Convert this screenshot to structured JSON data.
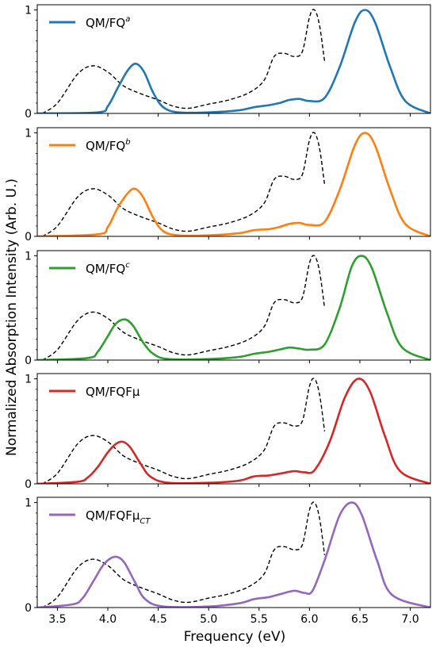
{
  "figure": {
    "ylabel": "Normalized Absorption Intensity (Arb. U.)",
    "xlabel": "Frequency (eV)"
  },
  "chart_data": [
    {
      "type": "line",
      "legend": {
        "label": "QM/FQ",
        "sup": "a",
        "sub": "",
        "placement": "top-left"
      },
      "xlim": [
        3.3,
        7.2
      ],
      "ylim": [
        0,
        1.05
      ],
      "xticks": [
        "3.5",
        "4.0",
        "4.5",
        "5.0",
        "5.5",
        "6.0",
        "6.5",
        "7.0"
      ],
      "yticks": [
        "0",
        "1"
      ],
      "series": [
        {
          "color": "#1f77b4",
          "style": "solid",
          "x": [
            3.3,
            3.9,
            4.0,
            4.1,
            4.2,
            4.28,
            4.36,
            4.45,
            4.55,
            4.7,
            5.0,
            5.3,
            5.45,
            5.6,
            5.7,
            5.8,
            5.9,
            6.0,
            6.15,
            6.3,
            6.45,
            6.55,
            6.65,
            6.8,
            6.95,
            7.2
          ],
          "y": [
            0,
            0.01,
            0.07,
            0.25,
            0.42,
            0.48,
            0.4,
            0.2,
            0.06,
            0.01,
            0.01,
            0.03,
            0.06,
            0.08,
            0.1,
            0.13,
            0.14,
            0.12,
            0.15,
            0.45,
            0.88,
            1.0,
            0.88,
            0.45,
            0.12,
            0.0
          ]
        },
        {
          "color": "#000000",
          "style": "dashed",
          "x": [
            3.35,
            3.5,
            3.7,
            3.85,
            4.0,
            4.15,
            4.3,
            4.5,
            4.65,
            4.8,
            5.0,
            5.2,
            5.4,
            5.55,
            5.65,
            5.75,
            5.85,
            5.93,
            6.0,
            6.05,
            6.1,
            6.15
          ],
          "y": [
            0.0,
            0.1,
            0.38,
            0.46,
            0.4,
            0.27,
            0.2,
            0.13,
            0.07,
            0.05,
            0.09,
            0.13,
            0.2,
            0.32,
            0.55,
            0.58,
            0.55,
            0.6,
            0.93,
            1.0,
            0.85,
            0.5
          ]
        }
      ]
    },
    {
      "type": "line",
      "legend": {
        "label": "QM/FQ",
        "sup": "b",
        "sub": "",
        "placement": "top-left"
      },
      "xlim": [
        3.3,
        7.2
      ],
      "ylim": [
        0,
        1.05
      ],
      "xticks": [
        "3.5",
        "4.0",
        "4.5",
        "5.0",
        "5.5",
        "6.0",
        "6.5",
        "7.0"
      ],
      "yticks": [
        "0",
        "1"
      ],
      "series": [
        {
          "color": "#ff7f0e",
          "style": "solid",
          "x": [
            3.3,
            3.9,
            4.0,
            4.1,
            4.2,
            4.27,
            4.35,
            4.45,
            4.55,
            4.7,
            5.0,
            5.3,
            5.45,
            5.6,
            5.7,
            5.8,
            5.9,
            6.0,
            6.15,
            6.3,
            6.45,
            6.55,
            6.65,
            6.8,
            6.95,
            7.2
          ],
          "y": [
            0,
            0.02,
            0.09,
            0.28,
            0.42,
            0.46,
            0.38,
            0.18,
            0.05,
            0.01,
            0.01,
            0.03,
            0.06,
            0.07,
            0.09,
            0.12,
            0.13,
            0.11,
            0.14,
            0.45,
            0.88,
            1.0,
            0.88,
            0.45,
            0.12,
            0.0
          ]
        },
        {
          "color": "#000000",
          "style": "dashed",
          "x": [
            3.35,
            3.5,
            3.7,
            3.85,
            4.0,
            4.15,
            4.3,
            4.5,
            4.65,
            4.8,
            5.0,
            5.2,
            5.4,
            5.55,
            5.65,
            5.75,
            5.85,
            5.93,
            6.0,
            6.05,
            6.1,
            6.15
          ],
          "y": [
            0.0,
            0.1,
            0.38,
            0.46,
            0.4,
            0.27,
            0.2,
            0.13,
            0.07,
            0.05,
            0.09,
            0.13,
            0.2,
            0.32,
            0.55,
            0.58,
            0.55,
            0.6,
            0.93,
            1.0,
            0.85,
            0.5
          ]
        }
      ]
    },
    {
      "type": "line",
      "legend": {
        "label": "QM/FQ",
        "sup": "c",
        "sub": "",
        "placement": "top-left"
      },
      "xlim": [
        3.3,
        7.2
      ],
      "ylim": [
        0,
        1.05
      ],
      "xticks": [
        "3.5",
        "4.0",
        "4.5",
        "5.0",
        "5.5",
        "6.0",
        "6.5",
        "7.0"
      ],
      "yticks": [
        "0",
        "1"
      ],
      "series": [
        {
          "color": "#2ca02c",
          "style": "solid",
          "x": [
            3.3,
            3.8,
            3.9,
            4.0,
            4.08,
            4.17,
            4.25,
            4.35,
            4.45,
            4.6,
            5.0,
            5.3,
            5.45,
            5.6,
            5.7,
            5.8,
            5.9,
            6.0,
            6.15,
            6.3,
            6.42,
            6.52,
            6.62,
            6.77,
            6.92,
            7.2
          ],
          "y": [
            0,
            0.02,
            0.08,
            0.23,
            0.35,
            0.39,
            0.33,
            0.17,
            0.06,
            0.01,
            0.01,
            0.03,
            0.06,
            0.08,
            0.1,
            0.12,
            0.11,
            0.1,
            0.15,
            0.5,
            0.9,
            1.0,
            0.88,
            0.45,
            0.12,
            0.0
          ]
        },
        {
          "color": "#000000",
          "style": "dashed",
          "x": [
            3.35,
            3.5,
            3.7,
            3.85,
            4.0,
            4.15,
            4.3,
            4.5,
            4.65,
            4.8,
            5.0,
            5.2,
            5.4,
            5.55,
            5.65,
            5.75,
            5.85,
            5.93,
            6.0,
            6.05,
            6.1,
            6.15
          ],
          "y": [
            0.0,
            0.1,
            0.38,
            0.46,
            0.4,
            0.27,
            0.2,
            0.13,
            0.07,
            0.05,
            0.09,
            0.13,
            0.2,
            0.32,
            0.55,
            0.58,
            0.55,
            0.6,
            0.93,
            1.0,
            0.85,
            0.5
          ]
        }
      ]
    },
    {
      "type": "line",
      "legend": {
        "label": "QM/FQFμ",
        "sup": "",
        "sub": "",
        "placement": "top-left"
      },
      "xlim": [
        3.3,
        7.2
      ],
      "ylim": [
        0,
        1.05
      ],
      "xticks": [
        "3.5",
        "4.0",
        "4.5",
        "5.0",
        "5.5",
        "6.0",
        "6.5",
        "7.0"
      ],
      "yticks": [
        "0",
        "1"
      ],
      "series": [
        {
          "color": "#d62728",
          "style": "solid",
          "x": [
            3.3,
            3.7,
            3.8,
            3.9,
            4.0,
            4.08,
            4.15,
            4.22,
            4.32,
            4.42,
            4.6,
            5.0,
            5.3,
            5.45,
            5.6,
            5.72,
            5.85,
            5.95,
            6.05,
            6.2,
            6.35,
            6.48,
            6.6,
            6.75,
            6.9,
            7.2
          ],
          "y": [
            0,
            0.02,
            0.06,
            0.16,
            0.3,
            0.38,
            0.4,
            0.35,
            0.2,
            0.07,
            0.01,
            0.01,
            0.03,
            0.07,
            0.08,
            0.1,
            0.12,
            0.11,
            0.13,
            0.4,
            0.82,
            1.0,
            0.88,
            0.45,
            0.12,
            0.0
          ]
        },
        {
          "color": "#000000",
          "style": "dashed",
          "x": [
            3.35,
            3.5,
            3.7,
            3.85,
            4.0,
            4.15,
            4.3,
            4.5,
            4.65,
            4.8,
            5.0,
            5.2,
            5.4,
            5.55,
            5.65,
            5.75,
            5.85,
            5.93,
            6.0,
            6.05,
            6.1,
            6.15
          ],
          "y": [
            0.0,
            0.1,
            0.38,
            0.46,
            0.4,
            0.27,
            0.2,
            0.13,
            0.07,
            0.05,
            0.09,
            0.13,
            0.2,
            0.32,
            0.55,
            0.58,
            0.55,
            0.6,
            0.93,
            1.0,
            0.85,
            0.5
          ]
        }
      ]
    },
    {
      "type": "line",
      "legend": {
        "label": "QM/FQFμ",
        "sup": "",
        "sub": "CT",
        "placement": "top-left"
      },
      "xlim": [
        3.3,
        7.2
      ],
      "ylim": [
        0,
        1.05
      ],
      "xticks": [
        "3.5",
        "4.0",
        "4.5",
        "5.0",
        "5.5",
        "6.0",
        "6.5",
        "7.0"
      ],
      "yticks": [
        "0",
        "1"
      ],
      "series": [
        {
          "color": "#9467bd",
          "style": "solid",
          "x": [
            3.3,
            3.65,
            3.75,
            3.85,
            3.95,
            4.03,
            4.1,
            4.17,
            4.27,
            4.37,
            4.55,
            5.0,
            5.3,
            5.45,
            5.6,
            5.72,
            5.85,
            5.95,
            6.03,
            6.15,
            6.3,
            6.42,
            6.52,
            6.67,
            6.82,
            7.2
          ],
          "y": [
            0,
            0.03,
            0.09,
            0.24,
            0.4,
            0.47,
            0.48,
            0.42,
            0.24,
            0.08,
            0.01,
            0.01,
            0.04,
            0.08,
            0.1,
            0.13,
            0.16,
            0.14,
            0.16,
            0.45,
            0.88,
            1.0,
            0.88,
            0.45,
            0.12,
            0.0
          ]
        },
        {
          "color": "#000000",
          "style": "dashed",
          "x": [
            3.35,
            3.5,
            3.7,
            3.85,
            4.0,
            4.15,
            4.3,
            4.5,
            4.65,
            4.8,
            5.0,
            5.2,
            5.4,
            5.55,
            5.65,
            5.75,
            5.85,
            5.93,
            6.0,
            6.05,
            6.1,
            6.15
          ],
          "y": [
            0.0,
            0.1,
            0.38,
            0.46,
            0.4,
            0.27,
            0.2,
            0.13,
            0.07,
            0.05,
            0.09,
            0.13,
            0.2,
            0.32,
            0.55,
            0.58,
            0.55,
            0.6,
            0.93,
            1.0,
            0.85,
            0.5
          ]
        }
      ]
    }
  ]
}
